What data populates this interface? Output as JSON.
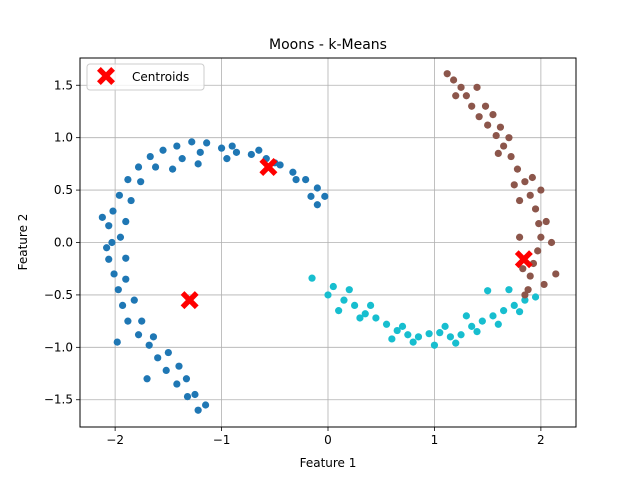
{
  "chart_data": {
    "type": "scatter",
    "title": "Moons - k-Means",
    "xlabel": "Feature 1",
    "ylabel": "Feature 2",
    "xlim": [
      -2.33,
      2.33
    ],
    "ylim": [
      -1.76,
      1.76
    ],
    "x_ticks": [
      -2,
      -1,
      0,
      1,
      2
    ],
    "y_ticks": [
      -1.5,
      -1.0,
      -0.5,
      0.0,
      0.5,
      1.0,
      1.5
    ],
    "x_tick_labels": [
      "−2",
      "−1",
      "0",
      "1",
      "2"
    ],
    "y_tick_labels": [
      "−1.5",
      "−1.0",
      "−0.5",
      "0.0",
      "0.5",
      "1.0",
      "1.5"
    ],
    "grid": true,
    "legend": {
      "position": "top-left",
      "entries": [
        "Centroids"
      ]
    },
    "series": [
      {
        "color": "#1f77b4",
        "points": [
          [
            -1.22,
            -1.6
          ],
          [
            -1.32,
            -1.47
          ],
          [
            -1.42,
            -1.35
          ],
          [
            -1.52,
            -1.22
          ],
          [
            -1.6,
            -1.1
          ],
          [
            -1.68,
            -0.98
          ],
          [
            -1.78,
            -0.88
          ],
          [
            -1.88,
            -0.75
          ],
          [
            -1.93,
            -0.6
          ],
          [
            -1.97,
            -0.45
          ],
          [
            -2.01,
            -0.3
          ],
          [
            -2.06,
            -0.16
          ],
          [
            -2.03,
            0.0
          ],
          [
            -2.06,
            0.16
          ],
          [
            -2.02,
            0.3
          ],
          [
            -1.96,
            0.45
          ],
          [
            -1.88,
            0.6
          ],
          [
            -1.78,
            0.72
          ],
          [
            -1.67,
            0.82
          ],
          [
            -1.55,
            0.88
          ],
          [
            -1.42,
            0.92
          ],
          [
            -1.28,
            0.96
          ],
          [
            -1.14,
            0.95
          ],
          [
            -1.0,
            0.9
          ],
          [
            -0.86,
            0.86
          ],
          [
            -0.72,
            0.84
          ],
          [
            -0.58,
            0.8
          ],
          [
            -0.45,
            0.74
          ],
          [
            -0.33,
            0.67
          ],
          [
            -0.21,
            0.6
          ],
          [
            -0.1,
            0.52
          ],
          [
            -0.03,
            0.44
          ],
          [
            -0.1,
            0.36
          ],
          [
            -0.3,
            0.6
          ],
          [
            -0.5,
            0.76
          ],
          [
            -0.65,
            0.88
          ],
          [
            -0.9,
            0.92
          ],
          [
            -1.2,
            0.86
          ],
          [
            -1.37,
            0.8
          ],
          [
            -1.62,
            0.72
          ],
          [
            -1.76,
            0.58
          ],
          [
            -1.85,
            0.4
          ],
          [
            -1.9,
            0.2
          ],
          [
            -1.95,
            0.05
          ],
          [
            -1.9,
            -0.15
          ],
          [
            -1.9,
            -0.35
          ],
          [
            -1.82,
            -0.55
          ],
          [
            -1.75,
            -0.75
          ],
          [
            -1.64,
            -0.9
          ],
          [
            -1.5,
            -1.05
          ],
          [
            -1.4,
            -1.18
          ],
          [
            -1.33,
            -1.3
          ],
          [
            -1.25,
            -1.45
          ],
          [
            -2.12,
            0.24
          ],
          [
            -2.08,
            -0.05
          ],
          [
            -1.98,
            -0.95
          ],
          [
            -1.7,
            -1.3
          ],
          [
            -1.15,
            -1.55
          ],
          [
            -0.16,
            0.44
          ],
          [
            -0.95,
            0.8
          ],
          [
            -1.46,
            0.7
          ],
          [
            -1.22,
            0.75
          ]
        ]
      },
      {
        "color": "#17becf",
        "points": [
          [
            -0.15,
            -0.34
          ],
          [
            0.0,
            -0.5
          ],
          [
            0.05,
            -0.42
          ],
          [
            0.15,
            -0.55
          ],
          [
            0.25,
            -0.6
          ],
          [
            0.35,
            -0.68
          ],
          [
            0.45,
            -0.72
          ],
          [
            0.55,
            -0.78
          ],
          [
            0.65,
            -0.84
          ],
          [
            0.75,
            -0.88
          ],
          [
            0.85,
            -0.9
          ],
          [
            0.95,
            -0.87
          ],
          [
            1.05,
            -0.86
          ],
          [
            1.15,
            -0.9
          ],
          [
            1.25,
            -0.88
          ],
          [
            1.35,
            -0.8
          ],
          [
            1.45,
            -0.75
          ],
          [
            1.55,
            -0.7
          ],
          [
            1.65,
            -0.65
          ],
          [
            1.75,
            -0.6
          ],
          [
            1.85,
            -0.55
          ],
          [
            1.95,
            -0.52
          ],
          [
            0.1,
            -0.65
          ],
          [
            0.3,
            -0.72
          ],
          [
            0.6,
            -0.92
          ],
          [
            0.8,
            -0.95
          ],
          [
            1.0,
            -0.98
          ],
          [
            1.2,
            -0.96
          ],
          [
            1.4,
            -0.85
          ],
          [
            1.6,
            -0.78
          ],
          [
            1.8,
            -0.66
          ],
          [
            1.5,
            -0.46
          ],
          [
            1.7,
            -0.45
          ],
          [
            0.2,
            -0.45
          ],
          [
            1.1,
            -0.8
          ],
          [
            0.7,
            -0.8
          ],
          [
            0.4,
            -0.6
          ],
          [
            1.3,
            -0.7
          ]
        ]
      },
      {
        "color": "#8c564b",
        "points": [
          [
            1.12,
            1.61
          ],
          [
            1.18,
            1.55
          ],
          [
            1.25,
            1.48
          ],
          [
            1.3,
            1.4
          ],
          [
            1.35,
            1.3
          ],
          [
            1.42,
            1.2
          ],
          [
            1.5,
            1.12
          ],
          [
            1.58,
            1.02
          ],
          [
            1.65,
            0.92
          ],
          [
            1.72,
            0.82
          ],
          [
            1.78,
            0.7
          ],
          [
            1.85,
            0.58
          ],
          [
            1.9,
            0.45
          ],
          [
            1.95,
            0.32
          ],
          [
            1.98,
            0.18
          ],
          [
            2.0,
            0.05
          ],
          [
            1.97,
            -0.08
          ],
          [
            1.93,
            -0.2
          ],
          [
            1.9,
            -0.32
          ],
          [
            1.88,
            -0.45
          ],
          [
            1.85,
            -0.5
          ],
          [
            1.2,
            1.4
          ],
          [
            1.4,
            1.48
          ],
          [
            1.48,
            1.3
          ],
          [
            1.55,
            1.22
          ],
          [
            1.62,
            1.1
          ],
          [
            1.7,
            1.0
          ],
          [
            1.75,
            0.55
          ],
          [
            1.8,
            0.4
          ],
          [
            2.1,
            0.0
          ],
          [
            2.05,
            0.2
          ],
          [
            2.14,
            -0.3
          ],
          [
            2.03,
            -0.4
          ],
          [
            1.8,
            0.05
          ],
          [
            1.83,
            -0.25
          ],
          [
            1.92,
            0.62
          ],
          [
            2.0,
            0.5
          ],
          [
            1.6,
            0.85
          ]
        ]
      }
    ],
    "centroids": {
      "name": "Centroids",
      "color": "#ff0000",
      "marker": "X",
      "points": [
        [
          -1.3,
          -0.55
        ],
        [
          -0.56,
          0.72
        ],
        [
          1.84,
          -0.16
        ]
      ]
    }
  }
}
